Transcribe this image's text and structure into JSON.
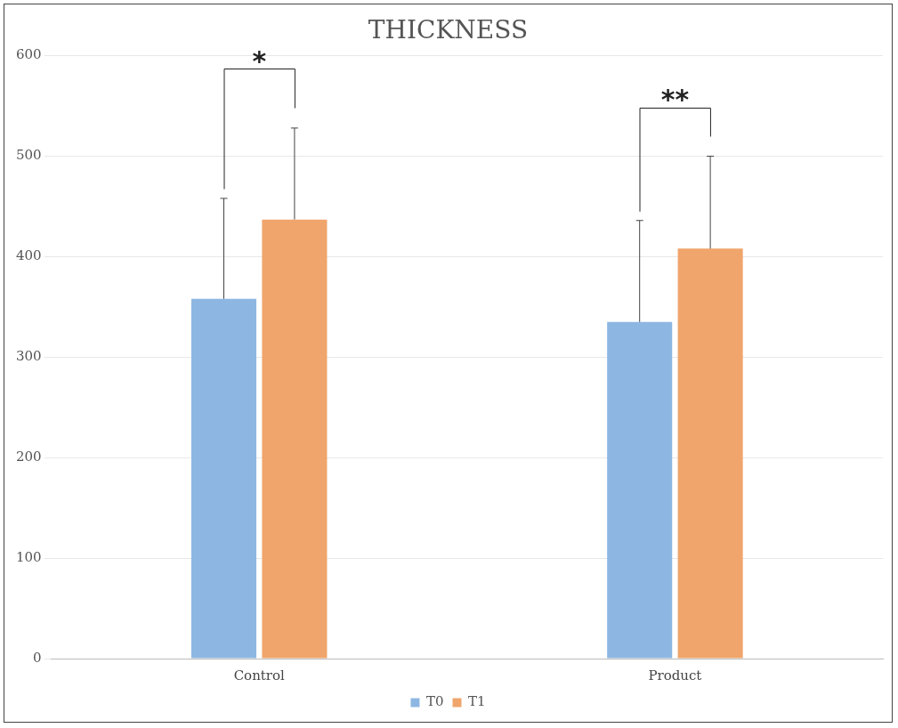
{
  "chart_data": {
    "type": "bar",
    "title": "THICKNESS",
    "categories": [
      "Control",
      "Product"
    ],
    "series": [
      {
        "name": "T0",
        "color": "#8db7e2",
        "values": [
          358,
          335
        ],
        "errors": [
          100,
          101
        ]
      },
      {
        "name": "T1",
        "color": "#f0a56c",
        "values": [
          437,
          408
        ],
        "errors": [
          91,
          92
        ]
      }
    ],
    "ylim": [
      0,
      600
    ],
    "yticks": [
      0,
      100,
      200,
      300,
      400,
      500,
      600
    ],
    "grid": "y",
    "legend": "bottom",
    "annotations": [
      "*",
      "**"
    ]
  }
}
